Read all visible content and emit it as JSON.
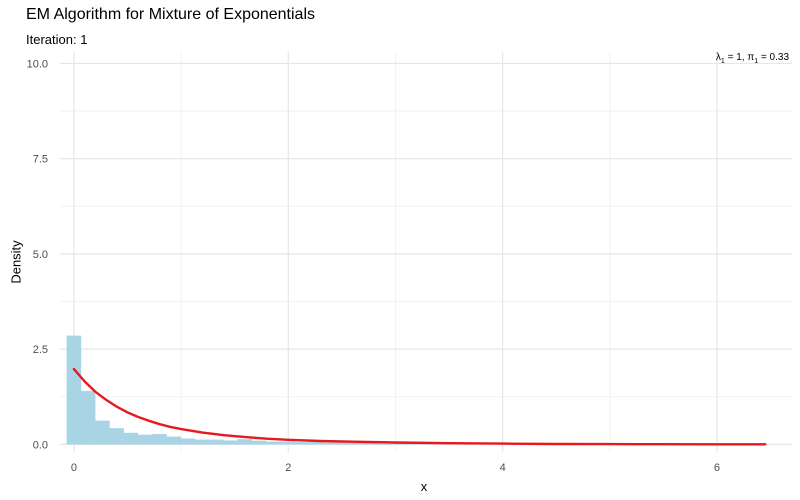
{
  "chart_data": {
    "type": "bar",
    "title": "EM Algorithm for Mixture of Exponentials",
    "subtitle": "Iteration: 1",
    "xlabel": "x",
    "ylabel": "Density",
    "xlim": [
      -0.13,
      6.7
    ],
    "ylim": [
      -0.2,
      10.3
    ],
    "x_ticks": [
      0,
      2,
      4,
      6
    ],
    "y_ticks": [
      0.0,
      2.5,
      5.0,
      7.5,
      10.0
    ],
    "y_tick_labels": [
      "0.0",
      "2.5",
      "5.0",
      "7.5",
      "10.0"
    ],
    "grid": true,
    "histogram": {
      "bin_width": 0.133,
      "bin_start": -0.067,
      "densities": [
        2.85,
        1.4,
        0.62,
        0.42,
        0.3,
        0.25,
        0.27,
        0.2,
        0.15,
        0.12,
        0.12,
        0.1,
        0.13,
        0.09,
        0.07,
        0.07,
        0.06,
        0.06,
        0.05,
        0.05,
        0.04,
        0.04,
        0.04,
        0.03,
        0.03,
        0.03,
        0.03,
        0.03,
        0.02,
        0.02,
        0.02,
        0.02,
        0.02,
        0.02,
        0.02,
        0.02,
        0.01,
        0.01,
        0.01,
        0.01,
        0.01,
        0.01,
        0.01,
        0.01,
        0.01,
        0.01,
        0.01,
        0.01,
        0.01
      ],
      "color": "#a8d4e6"
    },
    "series": [
      {
        "type": "line",
        "color": "#e8191e",
        "points": [
          [
            0,
            1.98
          ],
          [
            0.1,
            1.65
          ],
          [
            0.2,
            1.38
          ],
          [
            0.3,
            1.17
          ],
          [
            0.4,
            0.99
          ],
          [
            0.5,
            0.84
          ],
          [
            0.6,
            0.72
          ],
          [
            0.7,
            0.62
          ],
          [
            0.8,
            0.53
          ],
          [
            0.9,
            0.46
          ],
          [
            1.0,
            0.4
          ],
          [
            1.2,
            0.31
          ],
          [
            1.4,
            0.24
          ],
          [
            1.6,
            0.19
          ],
          [
            1.8,
            0.15
          ],
          [
            2.0,
            0.12
          ],
          [
            2.3,
            0.09
          ],
          [
            2.6,
            0.07
          ],
          [
            3.0,
            0.05
          ],
          [
            3.5,
            0.03
          ],
          [
            4.0,
            0.02
          ],
          [
            4.5,
            0.01
          ],
          [
            5.0,
            0.008
          ],
          [
            5.5,
            0.005
          ],
          [
            6.0,
            0.003
          ],
          [
            6.45,
            0.002
          ]
        ]
      }
    ],
    "annotation": {
      "lambda_symbol": "λ",
      "lambda_sub": "1",
      "lambda_value": " = 1, ",
      "pi_symbol": "π",
      "pi_sub": "1",
      "pi_value": " = 0.33"
    }
  }
}
